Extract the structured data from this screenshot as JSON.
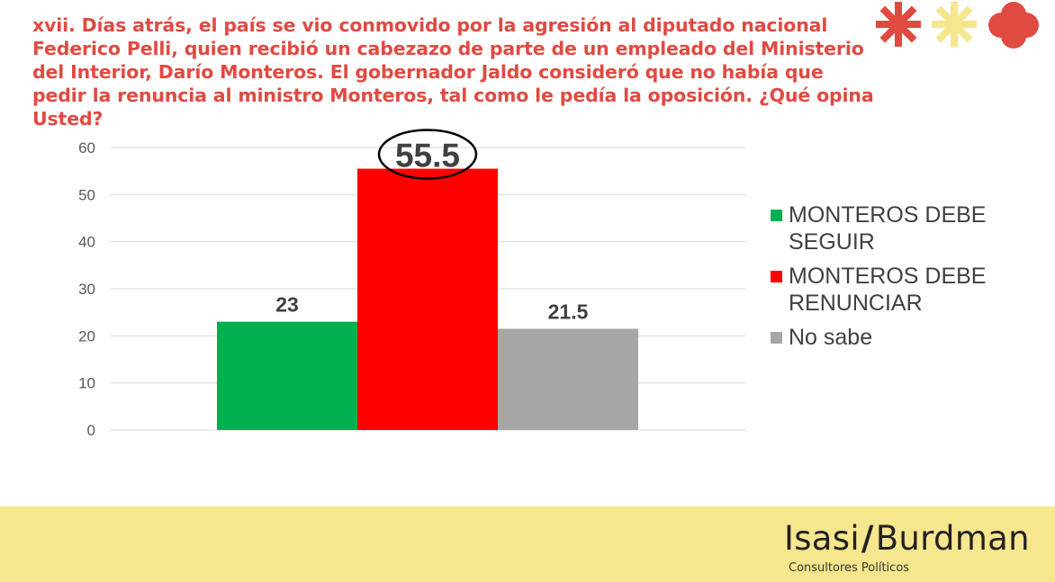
{
  "question": "xvii. Días atrás, el país se vio conmovido por la agresión al diputado nacional Federico Pelli, quien recibió un cabezazo de parte de un empleado del Ministerio del Interior, Darío Monteros. El gobernador Jaldo consideró que no había que pedir la renuncia al ministro Monteros, tal como le pedía la oposición. ¿Qué opina Usted?",
  "chart_data": {
    "type": "bar",
    "categories": [
      "MONTEROS DEBE SEGUIR",
      "MONTEROS DEBE RENUNCIAR",
      "No sabe"
    ],
    "values": [
      23,
      55.5,
      21.5
    ],
    "value_labels": [
      "23",
      "55.5",
      "21.5"
    ],
    "colors": [
      "#00b050",
      "#ff0000",
      "#a6a6a6"
    ],
    "highlighted_index": 1,
    "ylim": [
      0,
      60
    ],
    "yticks": [
      0,
      10,
      20,
      30,
      40,
      50,
      60
    ],
    "ytick_labels": [
      "0",
      "10",
      "20",
      "30",
      "40",
      "50",
      "60"
    ],
    "grid": true,
    "legend_position": "right",
    "title": "",
    "xlabel": "",
    "ylabel": ""
  },
  "legend": [
    {
      "label_line1": "MONTEROS DEBE",
      "label_line2": "SEGUIR",
      "color": "#00b050"
    },
    {
      "label_line1": "MONTEROS DEBE",
      "label_line2": "RENUNCIAR",
      "color": "#ff0000"
    },
    {
      "label_line1": "No sabe",
      "label_line2": "",
      "color": "#a6a6a6"
    }
  ],
  "brand": {
    "name_left": "Isasi",
    "slash": "/",
    "name_right": "Burdman",
    "subtitle": "Consultores Políticos"
  },
  "decor_colors": [
    "#e04a41",
    "#f6e68e",
    "#e04a41"
  ]
}
